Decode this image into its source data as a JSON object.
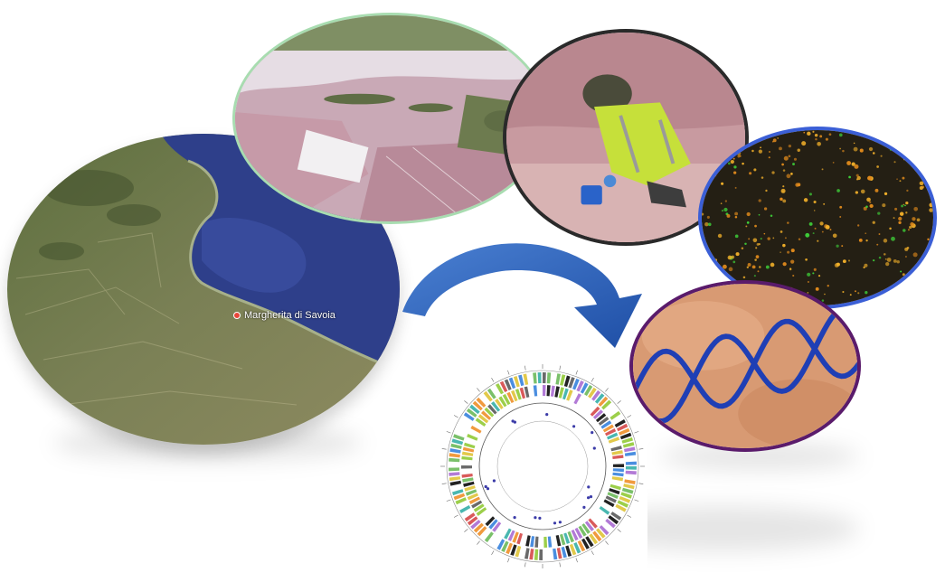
{
  "figure": {
    "map_label": "Margherita di Savoia",
    "panels": [
      "satellite-map",
      "saltern-aerial",
      "field-sampling",
      "microscopy",
      "dna-helix",
      "genome-map"
    ],
    "colors": {
      "saltern_border": "#a8dcb0",
      "sampling_border": "#2a2a2a",
      "microscopy_border": "#3b5fd6",
      "dna_border": "#5a1b6b",
      "arrow": "#3a6fc4"
    }
  }
}
